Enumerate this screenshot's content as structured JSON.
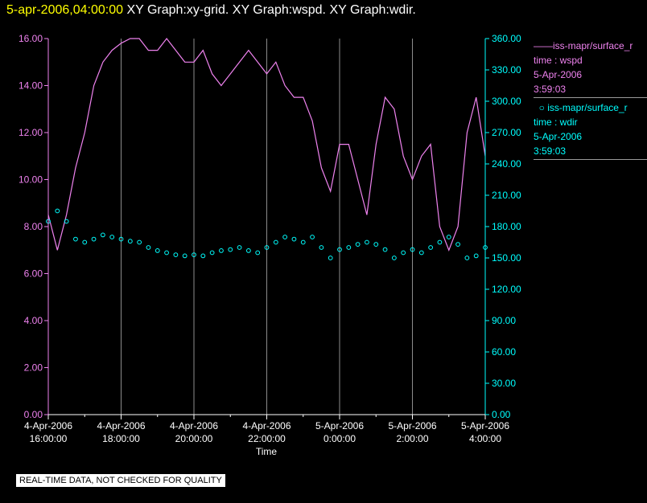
{
  "header": {
    "timestamp": "5-apr-2006,04:00:00",
    "titles": [
      "XY Graph:xy-grid.",
      "XY Graph:wspd.",
      "XY Graph:wdir."
    ]
  },
  "legend": [
    {
      "series": "iss-mapr/surface_r",
      "field": "time : wspd",
      "date": "5-Apr-2006",
      "time": "3:59:03",
      "color": "#ee82ee"
    },
    {
      "series": "iss-mapr/surface_r",
      "field": "time : wdir",
      "date": "5-Apr-2006",
      "time": "3:59:03",
      "color": "#00ffff"
    }
  ],
  "footer": {
    "disclaimer": "REAL-TIME DATA, NOT CHECKED FOR QUALITY"
  },
  "chart_data": {
    "type": "line",
    "xlabel": "Time",
    "xlim": [
      "4-Apr-2006 16:00:00",
      "5-Apr-2006 04:00:00"
    ],
    "x_ticks": [
      {
        "date": "4-Apr-2006",
        "time": "16:00:00"
      },
      {
        "date": "4-Apr-2006",
        "time": "18:00:00"
      },
      {
        "date": "4-Apr-2006",
        "time": "20:00:00"
      },
      {
        "date": "4-Apr-2006",
        "time": "22:00:00"
      },
      {
        "date": "5-Apr-2006",
        "time": "0:00:00"
      },
      {
        "date": "5-Apr-2006",
        "time": "2:00:00"
      },
      {
        "date": "5-Apr-2006",
        "time": "4:00:00"
      }
    ],
    "y_left": {
      "lim": [
        0,
        16
      ],
      "ticks": [
        "0.00",
        "2.00",
        "4.00",
        "6.00",
        "8.00",
        "10.00",
        "12.00",
        "14.00",
        "16.00"
      ],
      "color": "#ee82ee"
    },
    "y_right": {
      "lim": [
        0,
        360
      ],
      "ticks": [
        "0.00",
        "30.00",
        "60.00",
        "90.00",
        "120.00",
        "150.00",
        "180.00",
        "210.00",
        "240.00",
        "270.00",
        "300.00",
        "330.00",
        "360.00"
      ],
      "color": "#00ffff"
    },
    "grid": "vertical",
    "series": [
      {
        "field": "wspd",
        "axis": "left",
        "style": "line",
        "color": "#ee82ee",
        "x_hours": [
          16.0,
          16.25,
          16.5,
          16.75,
          17.0,
          17.25,
          17.5,
          17.75,
          18.0,
          18.25,
          18.5,
          18.75,
          19.0,
          19.25,
          19.5,
          19.75,
          20.0,
          20.25,
          20.5,
          20.75,
          21.0,
          21.25,
          21.5,
          21.75,
          22.0,
          22.25,
          22.5,
          22.75,
          23.0,
          23.25,
          23.5,
          23.75,
          24.0,
          24.25,
          24.5,
          24.75,
          25.0,
          25.25,
          25.5,
          25.75,
          26.0,
          26.25,
          26.5,
          26.75,
          27.0,
          27.25,
          27.5,
          27.75,
          28.0
        ],
        "values": [
          8.5,
          7.0,
          8.5,
          10.5,
          12.0,
          14.0,
          15.0,
          15.5,
          15.8,
          16.0,
          16.0,
          15.5,
          15.5,
          16.0,
          15.5,
          15.0,
          15.0,
          15.5,
          14.5,
          14.0,
          14.5,
          15.0,
          15.5,
          15.0,
          14.5,
          15.0,
          14.0,
          13.5,
          13.5,
          12.5,
          10.5,
          9.5,
          11.5,
          11.5,
          10.0,
          8.5,
          11.5,
          13.5,
          13.0,
          11.0,
          10.0,
          11.0,
          11.5,
          8.0,
          7.0,
          8.0,
          12.0,
          13.5,
          11.0
        ]
      },
      {
        "field": "wdir",
        "axis": "right",
        "style": "circles",
        "color": "#00ffff",
        "x_hours": [
          16.0,
          16.25,
          16.5,
          16.75,
          17.0,
          17.25,
          17.5,
          17.75,
          18.0,
          18.25,
          18.5,
          18.75,
          19.0,
          19.25,
          19.5,
          19.75,
          20.0,
          20.25,
          20.5,
          20.75,
          21.0,
          21.25,
          21.5,
          21.75,
          22.0,
          22.25,
          22.5,
          22.75,
          23.0,
          23.25,
          23.5,
          23.75,
          24.0,
          24.25,
          24.5,
          24.75,
          25.0,
          25.25,
          25.5,
          25.75,
          26.0,
          26.25,
          26.5,
          26.75,
          27.0,
          27.25,
          27.5,
          27.75,
          28.0
        ],
        "values": [
          185,
          195,
          185,
          168,
          165,
          168,
          172,
          170,
          168,
          166,
          165,
          160,
          157,
          155,
          153,
          152,
          153,
          152,
          155,
          157,
          158,
          160,
          157,
          155,
          160,
          165,
          170,
          168,
          165,
          170,
          160,
          150,
          158,
          160,
          163,
          165,
          163,
          158,
          150,
          155,
          158,
          155,
          160,
          165,
          170,
          163,
          150,
          152,
          160
        ]
      }
    ]
  }
}
